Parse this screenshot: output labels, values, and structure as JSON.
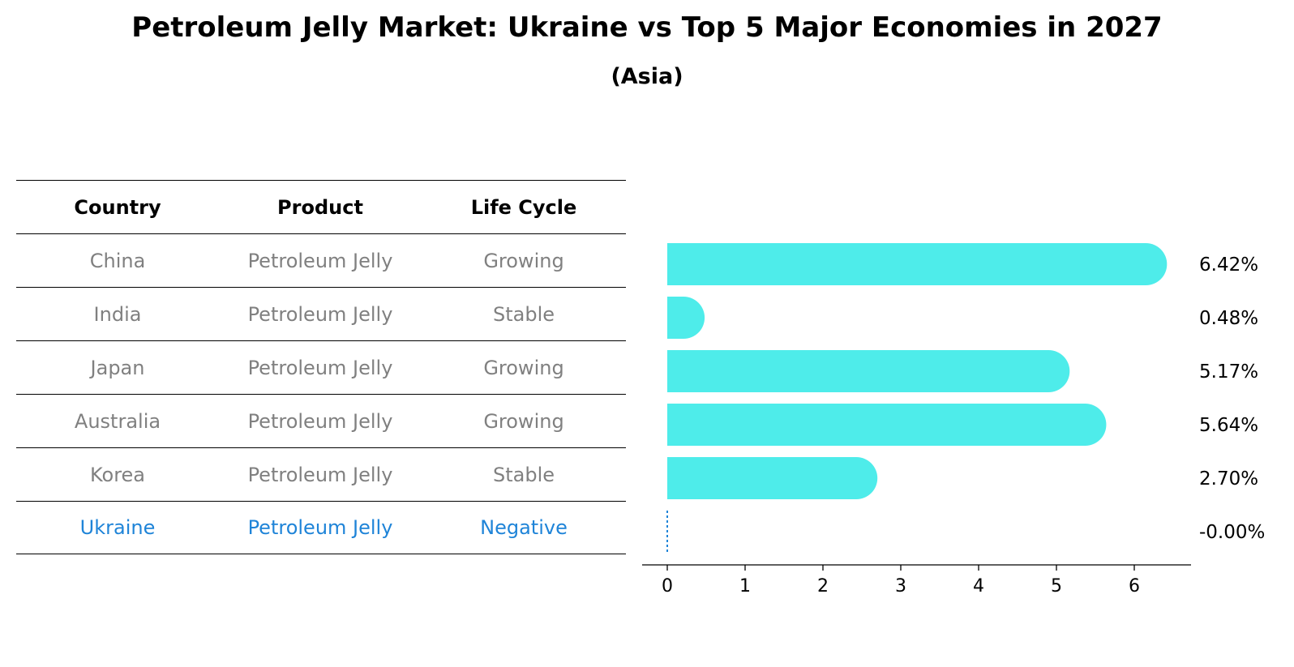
{
  "title": "Petroleum Jelly Market: Ukraine vs Top 5 Major Economies in 2027",
  "subtitle": "(Asia)",
  "table": {
    "headers": [
      "Country",
      "Product",
      "Life Cycle"
    ],
    "rows": [
      {
        "country": "China",
        "product": "Petroleum Jelly",
        "life_cycle": "Growing"
      },
      {
        "country": "India",
        "product": "Petroleum Jelly",
        "life_cycle": "Stable"
      },
      {
        "country": "Japan",
        "product": "Petroleum Jelly",
        "life_cycle": "Growing"
      },
      {
        "country": "Australia",
        "product": "Petroleum Jelly",
        "life_cycle": "Growing"
      },
      {
        "country": "Korea",
        "product": "Petroleum Jelly",
        "life_cycle": "Stable"
      },
      {
        "country": "Ukraine",
        "product": "Petroleum Jelly",
        "life_cycle": "Negative"
      }
    ]
  },
  "chart_data": {
    "type": "bar",
    "orientation": "horizontal",
    "categories": [
      "China",
      "India",
      "Japan",
      "Australia",
      "Korea",
      "Ukraine"
    ],
    "values": [
      6.42,
      0.48,
      5.17,
      5.64,
      2.7,
      -0.0
    ],
    "data_labels": [
      "6.42%",
      "0.48%",
      "5.17%",
      "5.64%",
      "2.70%",
      "-0.00%"
    ],
    "xticks": [
      0,
      1,
      2,
      3,
      4,
      5,
      6
    ],
    "xlim": [
      -0.33,
      6.75
    ],
    "xlabel": "",
    "ylabel": "",
    "grid": false,
    "bar_color": "#4eecea",
    "highlight_color": "#1f84d8"
  },
  "colors": {
    "muted_text": "#808080",
    "highlight_text": "#1f84d8"
  }
}
